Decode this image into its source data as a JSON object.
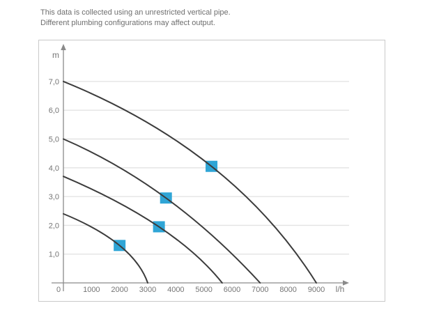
{
  "note": {
    "line1": "This data is collected using an unrestricted vertical pipe.",
    "line2": "Different plumbing configurations may affect output."
  },
  "chart_data": {
    "type": "line",
    "title": "",
    "xlabel": "l/h",
    "ylabel": "m",
    "xlim": [
      0,
      10100
    ],
    "ylim": [
      0,
      7.8
    ],
    "grid": true,
    "legend": false,
    "x_ticks": [
      0,
      1000,
      2000,
      3000,
      4000,
      5000,
      6000,
      7000,
      8000,
      9000
    ],
    "x_tick_labels": [
      "0",
      "1000",
      "2000",
      "3000",
      "4000",
      "5000",
      "6000",
      "7000",
      "8000",
      "9000"
    ],
    "y_ticks": [
      1,
      2,
      3,
      4,
      5,
      6,
      7
    ],
    "y_tick_labels": [
      "1,0",
      "2,0",
      "3,0",
      "4,0",
      "5,0",
      "6,0",
      "7,0"
    ],
    "series": [
      {
        "name": "curve-max-head-7.0m",
        "points": [
          [
            0,
            7.0
          ],
          [
            5270,
            4.05
          ],
          [
            9000,
            0
          ]
        ],
        "marker": [
          5270,
          4.05
        ]
      },
      {
        "name": "curve-max-head-5.0m",
        "points": [
          [
            0,
            5.0
          ],
          [
            3650,
            2.95
          ],
          [
            7000,
            0
          ]
        ],
        "marker": [
          3650,
          2.95
        ]
      },
      {
        "name": "curve-max-head-3.7m",
        "points": [
          [
            0,
            3.7
          ],
          [
            3400,
            1.95
          ],
          [
            5650,
            0
          ]
        ],
        "marker": [
          3400,
          1.95
        ]
      },
      {
        "name": "curve-max-head-2.4m",
        "points": [
          [
            0,
            2.4
          ],
          [
            2000,
            1.3
          ],
          [
            3000,
            0
          ]
        ],
        "marker": [
          2000,
          1.3
        ]
      }
    ],
    "colors": {
      "curve": "#3c3c3c",
      "marker": "#2fa5d6",
      "grid": "#e3e3e3",
      "axis": "#8a8a8a",
      "tick_text": "#757575"
    }
  }
}
